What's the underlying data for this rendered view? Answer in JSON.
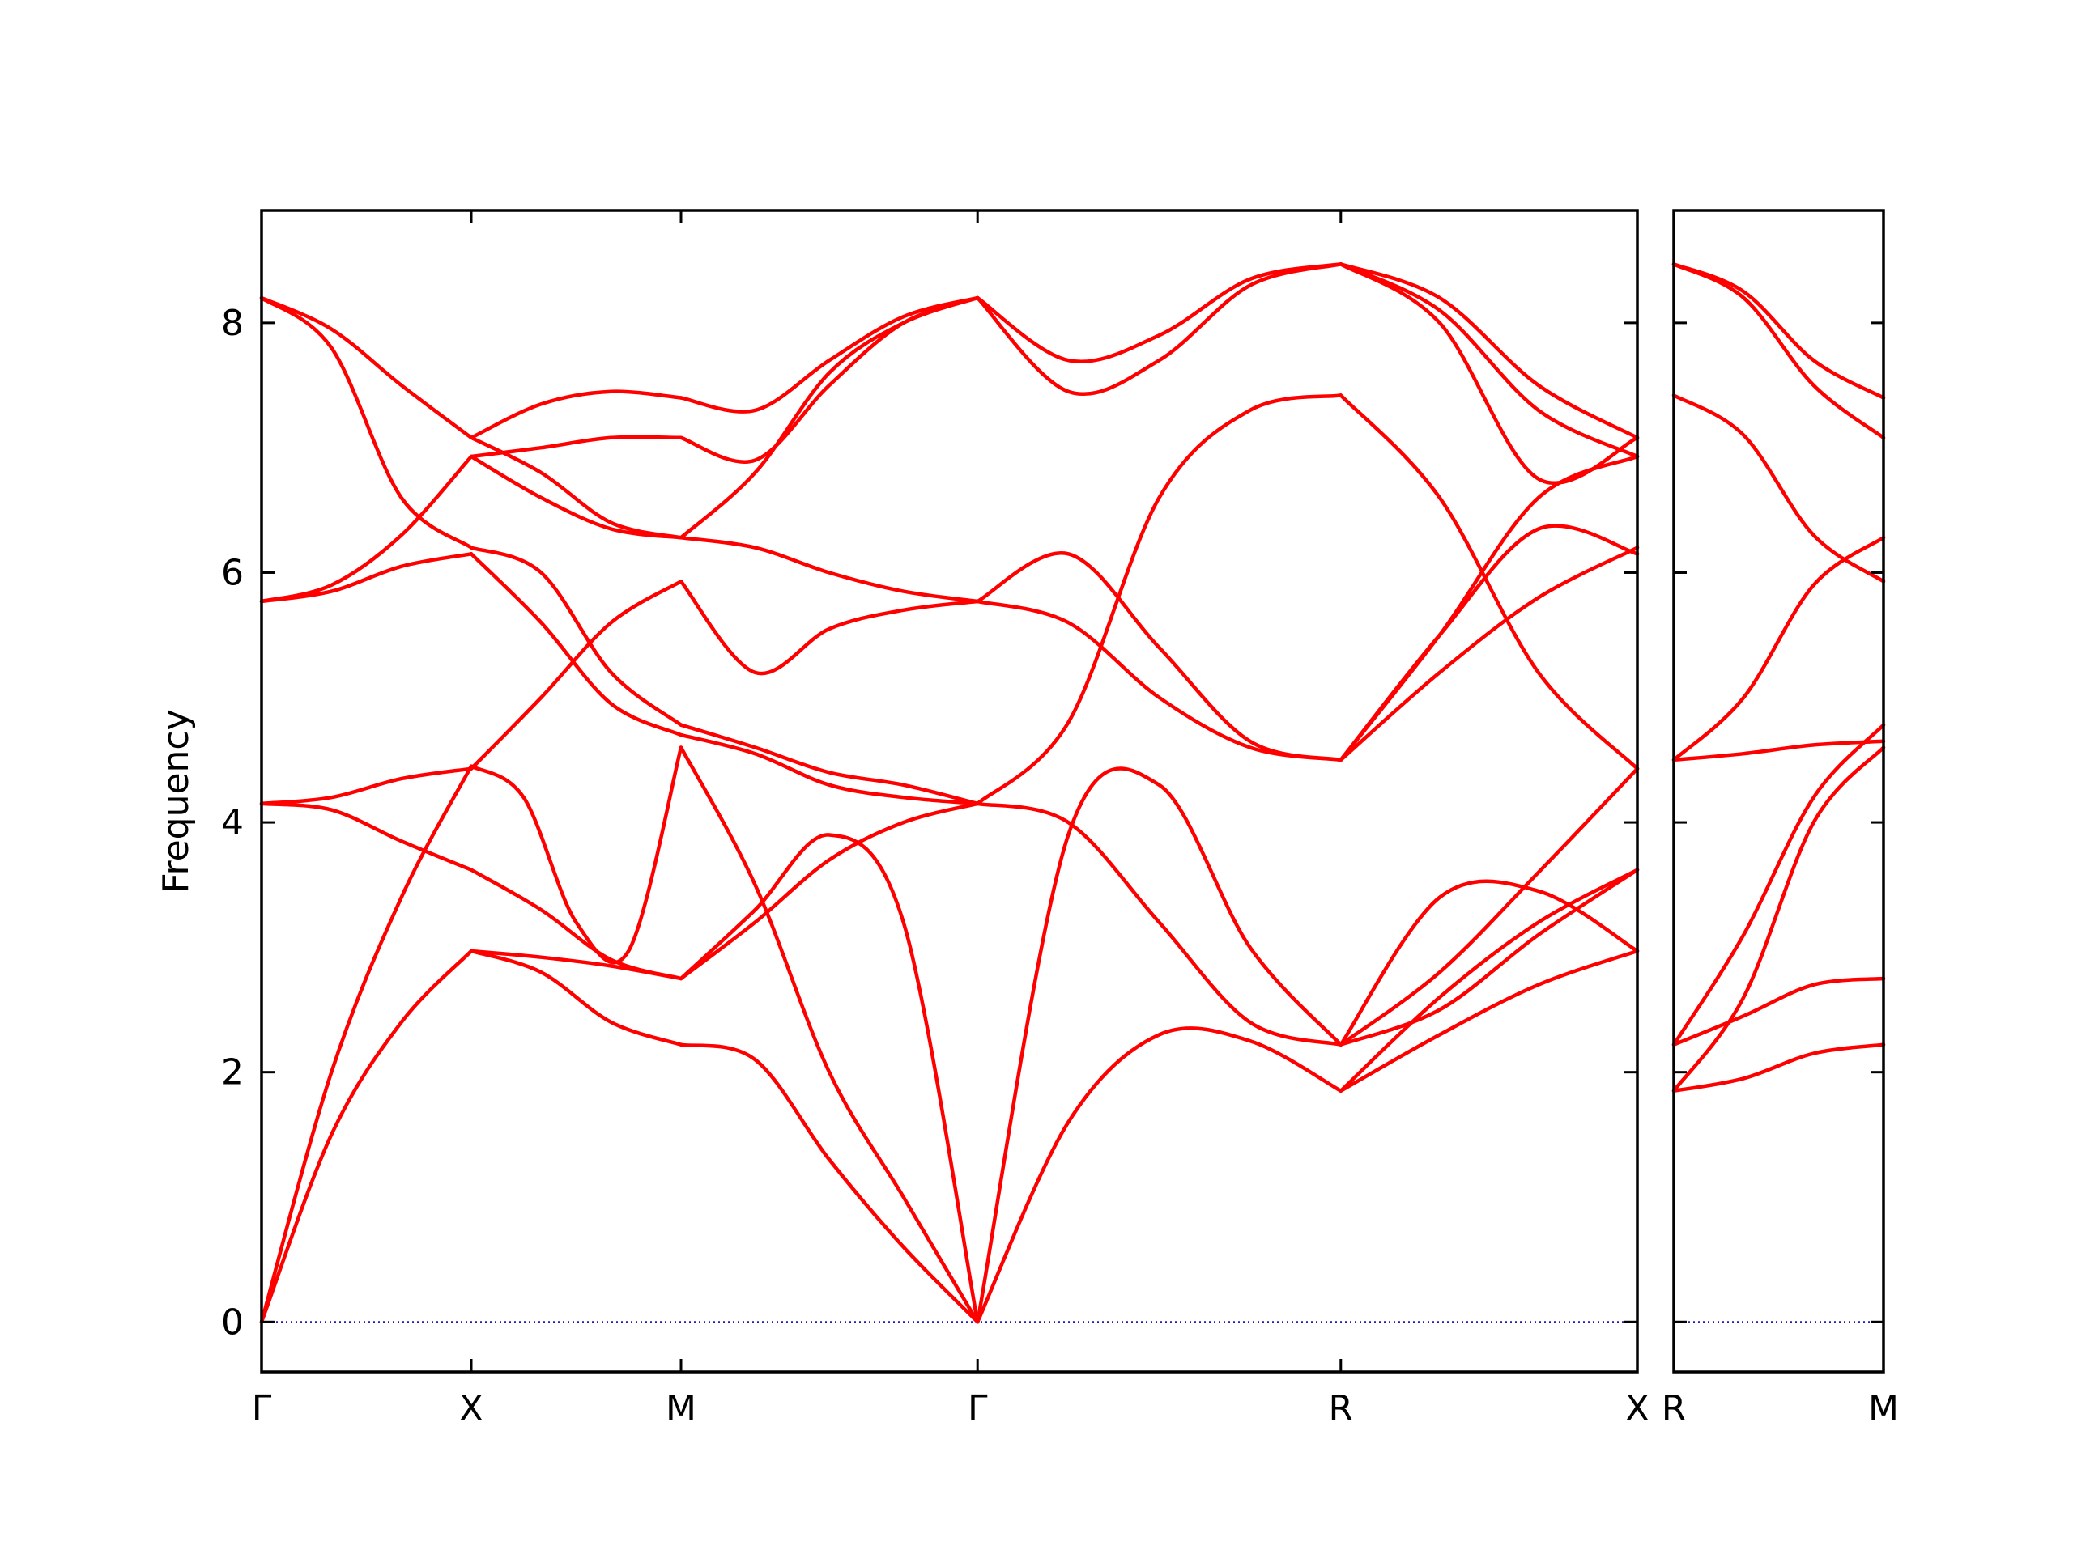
{
  "chart_data": {
    "type": "line",
    "title": "",
    "ylabel": "Frequency",
    "xlabel": "",
    "ylim": [
      -0.4,
      8.9
    ],
    "yticks": [
      0,
      2,
      4,
      6,
      8
    ],
    "grid": false,
    "colors": {
      "bands": "#ff0000",
      "zero_line": "#1f1fb4",
      "axes": "#000000"
    },
    "panels": [
      {
        "name": "main",
        "labels": [
          "Γ",
          "X",
          "M",
          "Γ",
          "R",
          "X"
        ],
        "segment_lengths": [
          0.5,
          0.5,
          0.707,
          0.866,
          0.707
        ],
        "segments": [
          {
            "from": "Γ",
            "to": "X",
            "bands": [
              [
                0,
                1.5,
                2.4,
                2.97
              ],
              [
                0,
                2.0,
                3.4,
                4.45
              ],
              [
                4.15,
                4.1,
                3.85,
                3.62
              ],
              [
                4.15,
                4.2,
                4.35,
                4.43
              ],
              [
                5.77,
                5.85,
                6.05,
                6.15
              ],
              [
                5.77,
                5.9,
                6.3,
                6.93
              ],
              [
                8.2,
                7.8,
                6.6,
                6.2
              ],
              [
                8.2,
                7.95,
                7.5,
                7.08
              ]
            ]
          },
          {
            "from": "X",
            "to": "M",
            "bands": [
              [
                2.97,
                2.8,
                2.4,
                2.22
              ],
              [
                2.97,
                2.92,
                2.85,
                2.75
              ],
              [
                3.62,
                3.3,
                2.9,
                2.75
              ],
              [
                4.45,
                4.2,
                3.2,
                2.97,
                4.6
              ],
              [
                4.43,
                5.0,
                5.6,
                5.93
              ],
              [
                6.15,
                5.6,
                4.95,
                4.7
              ],
              [
                6.2,
                6.0,
                5.2,
                4.78
              ],
              [
                6.93,
                6.6,
                6.35,
                6.28
              ],
              [
                7.08,
                6.8,
                6.4,
                6.28
              ],
              [
                6.93,
                7.0,
                7.08,
                7.08
              ],
              [
                7.08,
                7.35,
                7.45,
                7.4
              ]
            ]
          },
          {
            "from": "M",
            "to": "Γ",
            "bands": [
              [
                2.22,
                2.1,
                1.3,
                0.6,
                0
              ],
              [
                2.75,
                3.2,
                3.7,
                4.0,
                4.15
              ],
              [
                2.75,
                3.3,
                3.9,
                3.2,
                0
              ],
              [
                4.6,
                3.5,
                2.0,
                1.0,
                0
              ],
              [
                4.7,
                4.55,
                4.3,
                4.2,
                4.15
              ],
              [
                4.78,
                4.6,
                4.4,
                4.3,
                4.15
              ],
              [
                5.93,
                5.2,
                5.55,
                5.7,
                5.77
              ],
              [
                6.28,
                6.2,
                6.0,
                5.85,
                5.77
              ],
              [
                6.28,
                6.8,
                7.6,
                8.0,
                8.2
              ],
              [
                7.08,
                6.9,
                7.5,
                8.0,
                8.2
              ],
              [
                7.4,
                7.3,
                7.7,
                8.05,
                8.2
              ]
            ]
          },
          {
            "from": "Γ",
            "to": "R",
            "bands": [
              [
                0,
                1.6,
                2.3,
                2.25,
                1.85
              ],
              [
                0,
                3.9,
                4.3,
                3.0,
                2.22
              ],
              [
                4.15,
                4.0,
                3.2,
                2.4,
                2.22
              ],
              [
                5.77,
                5.6,
                5.0,
                4.6,
                4.5
              ],
              [
                5.77,
                6.15,
                5.4,
                4.65,
                4.5
              ],
              [
                4.15,
                4.8,
                6.6,
                7.3,
                7.42
              ],
              [
                8.2,
                7.7,
                7.9,
                8.35,
                8.47
              ],
              [
                8.2,
                7.45,
                7.7,
                8.3,
                8.47
              ]
            ]
          },
          {
            "from": "R",
            "to": "X",
            "bands": [
              [
                1.85,
                2.3,
                2.7,
                2.97
              ],
              [
                1.85,
                2.6,
                3.2,
                3.62
              ],
              [
                2.22,
                2.5,
                3.1,
                3.62
              ],
              [
                2.22,
                3.4,
                3.45,
                2.97
              ],
              [
                2.22,
                2.8,
                3.6,
                4.43
              ],
              [
                4.5,
                5.5,
                6.35,
                6.15
              ],
              [
                4.5,
                5.2,
                5.8,
                6.2
              ],
              [
                4.5,
                5.5,
                6.6,
                6.93
              ],
              [
                7.42,
                6.6,
                5.2,
                4.43
              ],
              [
                8.47,
                8.0,
                6.75,
                7.08
              ],
              [
                8.47,
                8.1,
                7.3,
                6.93
              ],
              [
                8.47,
                8.2,
                7.5,
                7.08
              ]
            ]
          }
        ]
      },
      {
        "name": "side",
        "labels": [
          "R",
          "M"
        ],
        "segment_lengths": [
          0.707
        ],
        "segments": [
          {
            "from": "R",
            "to": "M",
            "bands": [
              [
                1.85,
                1.95,
                2.15,
                2.22
              ],
              [
                2.22,
                2.45,
                2.7,
                2.75
              ],
              [
                1.85,
                2.6,
                4.0,
                4.6
              ],
              [
                2.22,
                3.1,
                4.2,
                4.78
              ],
              [
                4.5,
                4.55,
                4.62,
                4.65
              ],
              [
                4.5,
                5.0,
                5.9,
                6.28
              ],
              [
                7.42,
                7.1,
                6.3,
                5.93
              ],
              [
                8.47,
                8.2,
                7.5,
                7.08
              ],
              [
                8.47,
                8.25,
                7.7,
                7.4
              ]
            ]
          }
        ]
      }
    ]
  }
}
